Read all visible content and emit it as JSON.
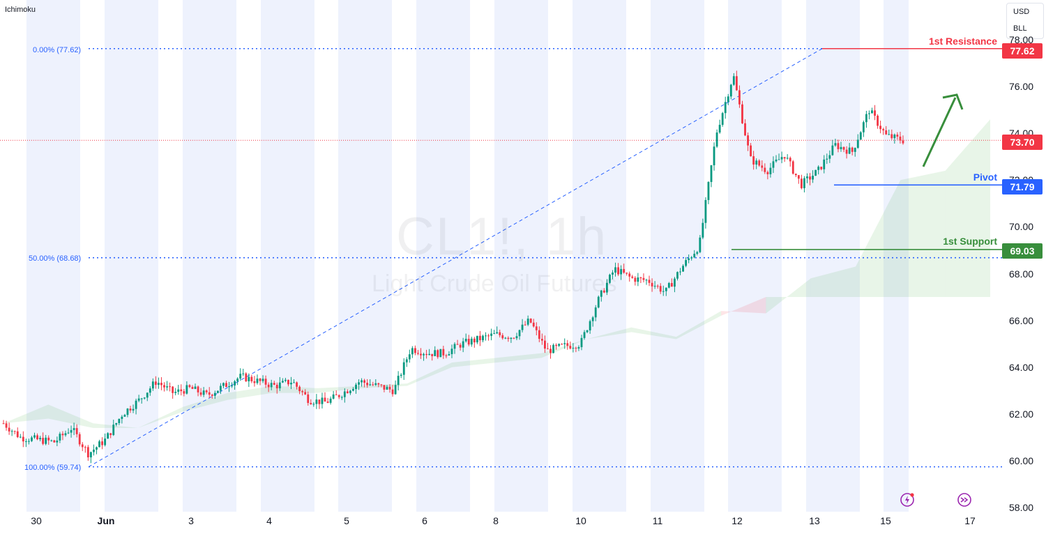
{
  "indicator": "Ichimoku",
  "currency_menu": [
    "USD",
    "BLL"
  ],
  "watermark": {
    "symbol": "CL1!, 1h",
    "description": "Light Crude Oil Futures"
  },
  "fib_labels": [
    {
      "text": "0.00% (77.62)",
      "price": 77.62
    },
    {
      "text": "50.00% (68.68)",
      "price": 68.68
    },
    {
      "text": "100.00% (59.74)",
      "price": 59.74
    }
  ],
  "levels": {
    "resistance": {
      "label": "1st Resistance",
      "price": "77.62",
      "color": "#f23645"
    },
    "last": {
      "price": "73.70",
      "color": "#f23645"
    },
    "pivot": {
      "label": "Pivot",
      "price": "71.79",
      "color": "#2962ff"
    },
    "support": {
      "label": "1st Support",
      "price": "69.03",
      "color": "#388e3c"
    }
  },
  "colors": {
    "up": "#089981",
    "down": "#f23645",
    "fib": "#2962ff",
    "session_band": "#eef2fd",
    "arrow": "#388e3c"
  },
  "icons": [
    "lightning-icon",
    "forward-arrow-icon"
  ],
  "chart_data": {
    "type": "candlestick",
    "symbol": "CL1!, 1h",
    "title": "Light Crude Oil Futures",
    "y_ticks": [
      "58.00",
      "60.00",
      "62.00",
      "64.00",
      "66.00",
      "68.00",
      "70.00",
      "72.00",
      "74.00",
      "76.00",
      "78.00"
    ],
    "x_ticks": [
      "30",
      "Jun",
      "3",
      "4",
      "5",
      "6",
      "8",
      "10",
      "11",
      "12",
      "13",
      "15",
      "17"
    ],
    "ylim": [
      58,
      78.6
    ],
    "grid": false,
    "ohlc_hourly_anchor_closes": [
      61.6,
      61.0,
      60.9,
      60.8,
      61.4,
      60.3,
      60.9,
      62.0,
      62.6,
      63.4,
      62.9,
      63.1,
      62.8,
      63.2,
      63.6,
      63.4,
      63.2,
      63.4,
      62.6,
      62.5,
      62.9,
      63.4,
      63.2,
      63.0,
      64.8,
      64.6,
      64.6,
      65.0,
      65.2,
      65.4,
      65.3,
      66.0,
      64.7,
      64.9,
      65.0,
      66.8,
      68.2,
      67.8,
      67.7,
      67.2,
      68.3,
      69.2,
      74.0,
      76.5,
      72.9,
      72.4,
      73.1,
      71.8,
      72.4,
      73.5,
      73.2,
      75.0,
      73.9,
      73.7
    ],
    "ichimoku_cloud": {
      "span_a": [
        61.6,
        62.4,
        61.6,
        61.4,
        62.3,
        62.9,
        63.2,
        63.1,
        63.2,
        63.3,
        64.2,
        64.4,
        64.6,
        65.2,
        65.7,
        65.3,
        66.4,
        66.3,
        67.8,
        68.3,
        72.0,
        72.4,
        74.6
      ],
      "span_b": [
        61.6,
        61.8,
        61.4,
        61.4,
        62.1,
        62.6,
        62.9,
        62.9,
        63.1,
        63.2,
        64.0,
        64.2,
        64.4,
        65.2,
        65.5,
        65.2,
        66.2,
        67.0,
        67.0,
        67.0,
        67.0,
        67.0,
        67.0
      ]
    },
    "fibonacci": [
      {
        "level": "0.00%",
        "price": 77.62
      },
      {
        "level": "50.00%",
        "price": 68.68
      },
      {
        "level": "100.00%",
        "price": 59.74
      }
    ],
    "horizontal_levels": [
      {
        "name": "1st Resistance",
        "price": 77.62
      },
      {
        "name": "Pivot",
        "price": 71.79
      },
      {
        "name": "1st Support",
        "price": 69.03
      }
    ],
    "last_price": 73.7
  }
}
